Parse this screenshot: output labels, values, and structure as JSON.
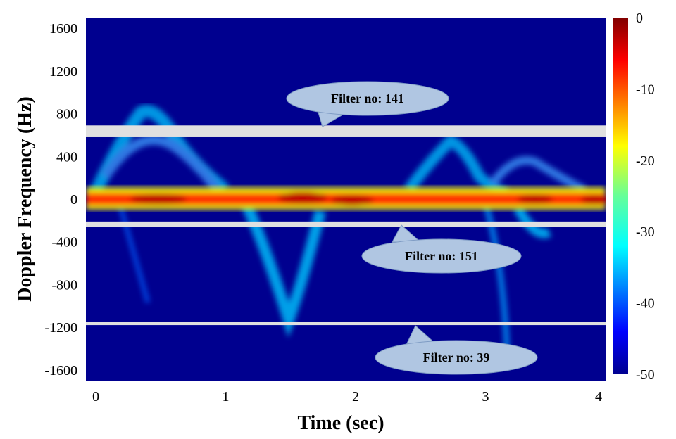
{
  "chart_data": {
    "type": "heatmap",
    "title": "",
    "xlabel": "Time (sec)",
    "ylabel": "Doppler Frequency (Hz)",
    "x_ticks": [
      "0",
      "1",
      "2",
      "3",
      "4"
    ],
    "y_ticks": [
      "1600",
      "1200",
      "800",
      "400",
      "0",
      "-400",
      "-800",
      "-1200",
      "-1600"
    ],
    "xlim": [
      0,
      4
    ],
    "ylim": [
      -1700,
      1700
    ],
    "colorbar": {
      "ticks": [
        "0",
        "-10",
        "-20",
        "-30",
        "-40",
        "-50"
      ],
      "range": [
        -50,
        0
      ],
      "colormap": "jet"
    },
    "filter_bands": [
      {
        "label": "Filter no: 141",
        "y_low": 580,
        "y_high": 690
      },
      {
        "label": "Filter no: 151",
        "y_low": -260,
        "y_high": -210
      },
      {
        "label": "Filter no: 39",
        "y_low": -1180,
        "y_high": -1150
      }
    ],
    "colors": {
      "background": "#00008f",
      "band": "#e0e0e0",
      "callout_fill": "#b0c6e2",
      "callout_stroke": "#7f9cc4"
    }
  }
}
